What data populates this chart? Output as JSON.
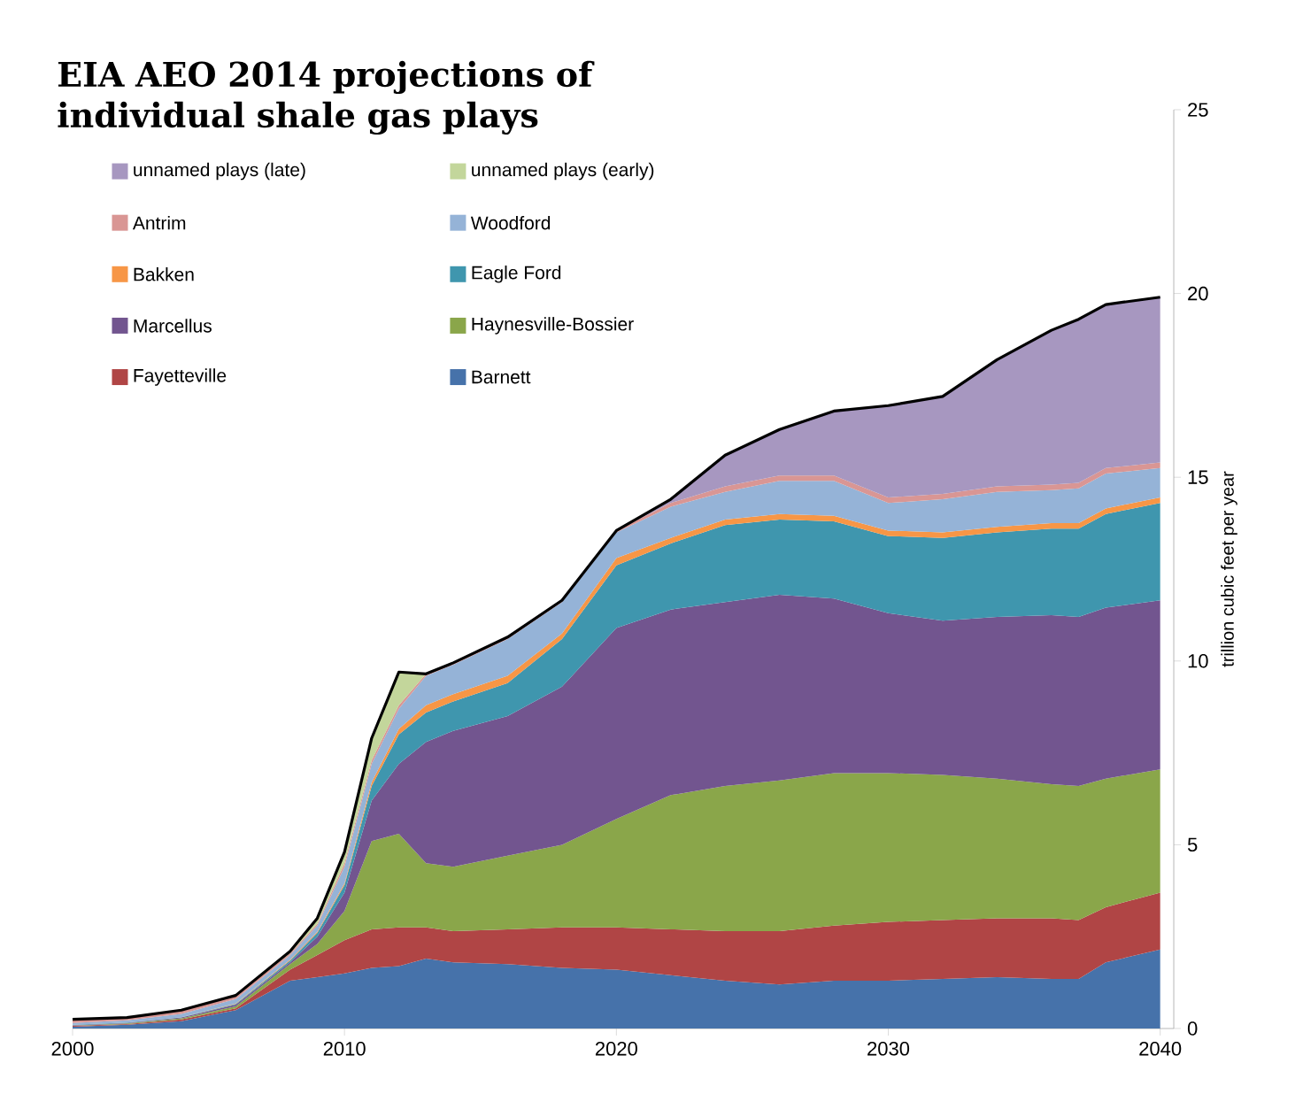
{
  "chart_data": {
    "type": "area",
    "title": "EIA AEO 2014 projections of individual shale gas plays",
    "ylabel": "trillion cubic feet per year",
    "stacked": true,
    "legend": "top left",
    "x": [
      2000,
      2002,
      2004,
      2006,
      2008,
      2009,
      2010,
      2011,
      2012,
      2013,
      2014,
      2016,
      2018,
      2020,
      2022,
      2024,
      2026,
      2028,
      2030,
      2032,
      2034,
      2036,
      2037,
      2038,
      2040
    ],
    "xlim": [
      2000,
      2040.5
    ],
    "xticks": [
      2000,
      2010,
      2020,
      2030,
      2040
    ],
    "ylim": [
      0,
      25
    ],
    "yticks": [
      0,
      5,
      10,
      15,
      20,
      25
    ],
    "series": [
      {
        "name": "Barnett",
        "color": "#4672aa",
        "values": [
          0.05,
          0.1,
          0.2,
          0.5,
          1.3,
          1.4,
          1.5,
          1.65,
          1.7,
          1.9,
          1.8,
          1.75,
          1.65,
          1.6,
          1.45,
          1.3,
          1.2,
          1.3,
          1.3,
          1.35,
          1.4,
          1.35,
          1.35,
          1.8,
          2.15
        ]
      },
      {
        "name": "Fayetteville",
        "color": "#b04545",
        "values": [
          0.02,
          0.02,
          0.05,
          0.05,
          0.3,
          0.6,
          0.9,
          1.05,
          1.05,
          0.85,
          0.85,
          0.95,
          1.1,
          1.15,
          1.25,
          1.35,
          1.45,
          1.5,
          1.6,
          1.6,
          1.6,
          1.65,
          1.6,
          1.5,
          1.55
        ]
      },
      {
        "name": "Haynesville-Bossier",
        "color": "#8aa64a",
        "values": [
          0.01,
          0.02,
          0.03,
          0.05,
          0.15,
          0.3,
          0.8,
          2.4,
          2.55,
          1.75,
          1.75,
          2.0,
          2.25,
          2.95,
          3.65,
          3.95,
          4.1,
          4.15,
          4.05,
          3.95,
          3.8,
          3.65,
          3.65,
          3.5,
          3.35
        ]
      },
      {
        "name": "Marcellus",
        "color": "#72558f",
        "values": [
          0.01,
          0.01,
          0.02,
          0.05,
          0.05,
          0.2,
          0.5,
          1.1,
          1.9,
          3.3,
          3.7,
          3.8,
          4.3,
          5.2,
          5.05,
          5.0,
          5.05,
          4.75,
          4.35,
          4.2,
          4.4,
          4.6,
          4.6,
          4.65,
          4.6
        ]
      },
      {
        "name": "Eagle Ford",
        "color": "#3f96ae",
        "values": [
          0.01,
          0.01,
          0.01,
          0.02,
          0.05,
          0.1,
          0.2,
          0.4,
          0.8,
          0.8,
          0.8,
          0.9,
          1.3,
          1.7,
          1.8,
          2.1,
          2.05,
          2.1,
          2.1,
          2.25,
          2.3,
          2.35,
          2.4,
          2.55,
          2.65
        ]
      },
      {
        "name": "Bakken",
        "color": "#f79646",
        "values": [
          0,
          0,
          0,
          0.01,
          0.02,
          0.03,
          0.05,
          0.1,
          0.15,
          0.2,
          0.2,
          0.2,
          0.15,
          0.2,
          0.15,
          0.15,
          0.15,
          0.15,
          0.15,
          0.15,
          0.15,
          0.15,
          0.15,
          0.15,
          0.15
        ]
      },
      {
        "name": "Woodford",
        "color": "#95b3d7",
        "values": [
          0.05,
          0.06,
          0.09,
          0.12,
          0.13,
          0.17,
          0.45,
          0.5,
          0.55,
          0.8,
          0.8,
          1.0,
          0.85,
          0.7,
          0.85,
          0.75,
          0.9,
          0.95,
          0.75,
          0.9,
          0.95,
          0.9,
          0.95,
          0.95,
          0.8
        ]
      },
      {
        "name": "Antrim",
        "color": "#d99694",
        "values": [
          0.1,
          0.08,
          0.1,
          0.1,
          0.05,
          0.05,
          0.1,
          0.1,
          0.1,
          0.05,
          0.05,
          0.05,
          0.05,
          0.05,
          0.1,
          0.15,
          0.15,
          0.15,
          0.15,
          0.15,
          0.15,
          0.15,
          0.15,
          0.15,
          0.15
        ]
      },
      {
        "name": "unnamed plays (early)",
        "color": "#c3d69b",
        "values": [
          0,
          0,
          0,
          0,
          0.05,
          0.15,
          0.3,
          0.6,
          0.9,
          0,
          0,
          0,
          0,
          0,
          0,
          0,
          0,
          0,
          0,
          0,
          0,
          0,
          0,
          0,
          0
        ]
      },
      {
        "name": "unnamed plays (late)",
        "color": "#a797c0",
        "values": [
          0,
          0,
          0,
          0,
          0,
          0,
          0,
          0,
          0,
          0,
          0,
          0,
          0,
          0,
          0.1,
          0.85,
          1.25,
          1.75,
          2.5,
          2.65,
          3.45,
          4.2,
          4.45,
          4.45,
          4.5
        ]
      }
    ]
  }
}
